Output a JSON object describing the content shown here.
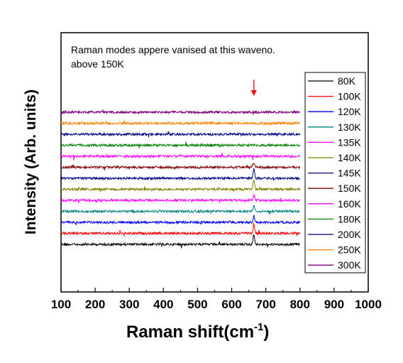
{
  "chart_data": {
    "type": "line",
    "title": "",
    "xlabel": "Raman shift(cm",
    "xlabel_sup": "-1",
    "xlabel_close": ")",
    "ylabel": "Intensity (Arb. units)",
    "xlim": [
      100,
      1000
    ],
    "x_ticks": [
      "100",
      "200",
      "300",
      "400",
      "500",
      "600",
      "700",
      "800",
      "900",
      "1000"
    ],
    "y_ticks_shown": false,
    "x_data_range": [
      100,
      800
    ],
    "peak_position": 665,
    "legend_position": "right",
    "grid": false,
    "annotation": {
      "line1": "Raman modes appere vanised at this waveno.",
      "line2": "above 150K",
      "arrow_x": 665,
      "arrow_color": "#ff0000"
    },
    "series": [
      {
        "name": "80K",
        "color": "#000000",
        "offset": 0,
        "peak": 14
      },
      {
        "name": "100K",
        "color": "#ff0000",
        "offset": 1,
        "peak": 12
      },
      {
        "name": "120K",
        "color": "#0000ff",
        "offset": 2,
        "peak": 9
      },
      {
        "name": "130K",
        "color": "#008080",
        "offset": 3,
        "peak": 8
      },
      {
        "name": "135K",
        "color": "#ff00ff",
        "offset": 4,
        "peak": 8
      },
      {
        "name": "140K",
        "color": "#808000",
        "offset": 5,
        "peak": 14
      },
      {
        "name": "145K",
        "color": "#000080",
        "offset": 6,
        "peak": 14
      },
      {
        "name": "150K",
        "color": "#800000",
        "offset": 7,
        "peak": 6
      },
      {
        "name": "160K",
        "color": "#ff00ff",
        "offset": 8,
        "peak": 0
      },
      {
        "name": "180K",
        "color": "#008000",
        "offset": 9,
        "peak": 0
      },
      {
        "name": "200K",
        "color": "#000080",
        "offset": 10,
        "peak": 0
      },
      {
        "name": "250K",
        "color": "#ff8000",
        "offset": 11,
        "peak": 0
      },
      {
        "name": "300K",
        "color": "#800080",
        "offset": 12,
        "peak": 0
      }
    ]
  }
}
